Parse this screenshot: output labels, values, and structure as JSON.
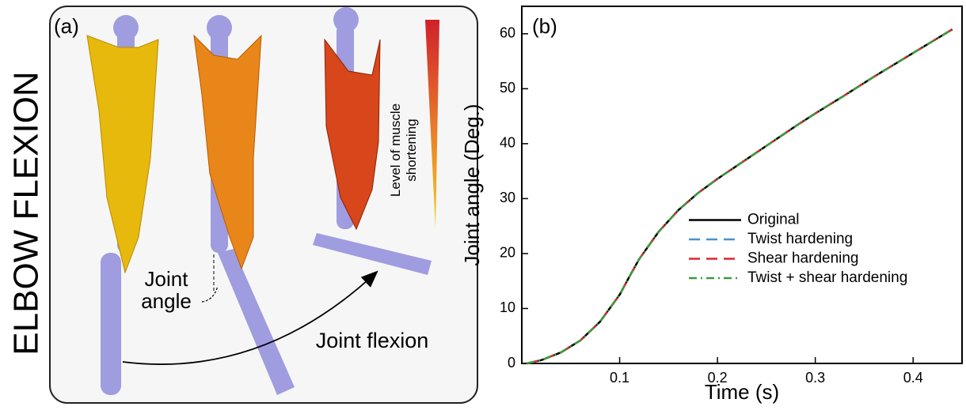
{
  "illustration": {
    "side_title": "ELBOW FLEXION",
    "panel_label": "(a)",
    "joint_angle": [
      "Joint",
      "angle"
    ],
    "joint_flexion": "Joint flexion",
    "colorbar_label": [
      "Level of muscle",
      "shortening"
    ]
  },
  "chart_data": {
    "type": "line",
    "panel_label": "(b)",
    "x_label": "Time (s)",
    "y_label": "Joint angle (Deg.)",
    "x": [
      0.005,
      0.02,
      0.04,
      0.06,
      0.08,
      0.1,
      0.11,
      0.12,
      0.14,
      0.16,
      0.18,
      0.2,
      0.22,
      0.25,
      0.28,
      0.3,
      0.33,
      0.36,
      0.4,
      0.44
    ],
    "series": [
      {
        "name": "Original",
        "color": "#000000",
        "dash": "solid",
        "values": [
          0,
          0.6,
          2,
          4.2,
          7.6,
          12.5,
          15.8,
          19,
          24,
          27.9,
          31,
          33.6,
          36,
          39.6,
          43.2,
          45.5,
          48.8,
          52.2,
          56.5,
          60.8
        ]
      },
      {
        "name": "Twist hardening",
        "color": "#4a90d0",
        "dash": "dashed",
        "values": [
          0,
          0.6,
          2,
          4.2,
          7.6,
          12.5,
          15.8,
          19,
          24,
          27.9,
          31,
          33.6,
          36,
          39.6,
          43.2,
          45.5,
          48.8,
          52.2,
          56.5,
          60.8
        ]
      },
      {
        "name": "Shear hardening",
        "color": "#e0262b",
        "dash": "dashed",
        "values": [
          0,
          0.6,
          2,
          4.2,
          7.6,
          12.5,
          15.8,
          19,
          24,
          27.9,
          31,
          33.6,
          36,
          39.6,
          43.2,
          45.5,
          48.8,
          52.2,
          56.5,
          60.8
        ]
      },
      {
        "name": "Twist + shear hardening",
        "color": "#3a9a3a",
        "dash": "dashdot",
        "values": [
          0,
          0.6,
          2,
          4.2,
          7.6,
          12.5,
          15.8,
          19,
          24,
          27.9,
          31,
          33.6,
          36,
          39.6,
          43.2,
          45.5,
          48.8,
          52.2,
          56.5,
          60.8
        ]
      }
    ],
    "xlim": [
      0,
      0.45
    ],
    "ylim": [
      0,
      65
    ],
    "xticks": [
      0.1,
      0.2,
      0.3,
      0.4
    ],
    "yticks": [
      0,
      10,
      20,
      30,
      40,
      50,
      60
    ],
    "legend": "lower right",
    "grid": false
  }
}
